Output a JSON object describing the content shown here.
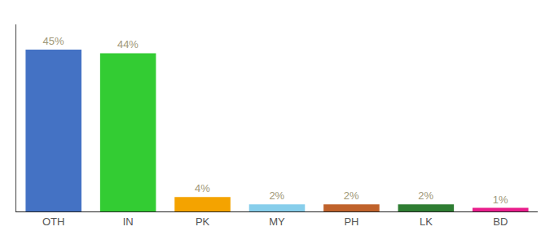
{
  "chart_data": {
    "type": "bar",
    "categories": [
      "OTH",
      "IN",
      "PK",
      "MY",
      "PH",
      "LK",
      "BD"
    ],
    "values": [
      45,
      44,
      4,
      2,
      2,
      2,
      1
    ],
    "value_labels": [
      "45%",
      "44%",
      "4%",
      "2%",
      "2%",
      "2%",
      "1%"
    ],
    "colors": [
      "#4472C4",
      "#33CC33",
      "#F4A300",
      "#87CEEB",
      "#C0622B",
      "#2E7D32",
      "#E91E8C"
    ],
    "ylim": [
      0,
      52
    ],
    "grid": false,
    "data_labels": true,
    "tick_labels": "x"
  }
}
